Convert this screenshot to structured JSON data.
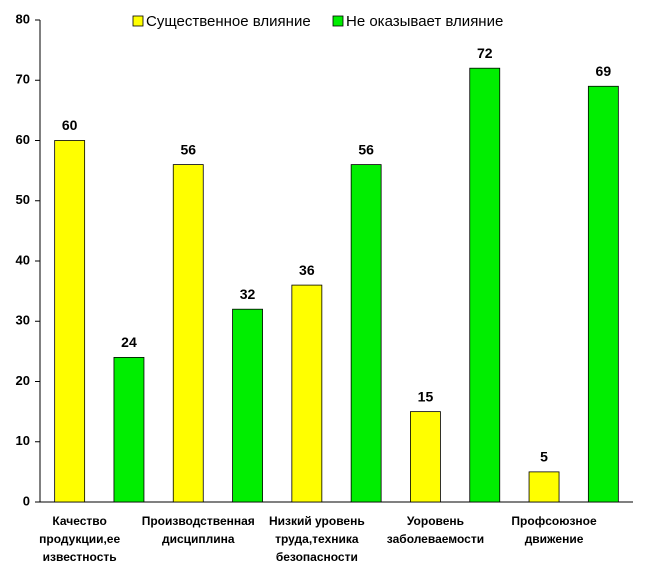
{
  "chart_data": {
    "type": "bar",
    "categories": [
      [
        "Качество",
        "продукции,ее",
        "известность"
      ],
      [
        "Производственная",
        "дисциплина"
      ],
      [
        "Низкий уровень",
        "труда,техника",
        "безопасности"
      ],
      [
        "Уоровень",
        "заболеваемости"
      ],
      [
        "Профсоюзное",
        "движение"
      ]
    ],
    "series": [
      {
        "name": "Существенное влияние",
        "color": "#ffff00",
        "values": [
          60,
          56,
          36,
          15,
          5
        ]
      },
      {
        "name": "Не оказывает влияние",
        "color": "#00ee00",
        "values": [
          24,
          32,
          56,
          72,
          69
        ]
      }
    ],
    "ylim": [
      0,
      80
    ],
    "yticks": [
      0,
      10,
      20,
      30,
      40,
      50,
      60,
      70,
      80
    ],
    "grid": false
  }
}
